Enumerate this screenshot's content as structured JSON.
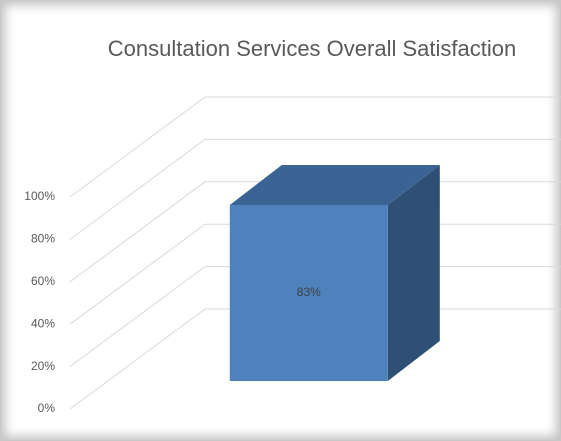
{
  "chart_data": {
    "type": "bar3d",
    "title": "Consultation Services Overall Satisfaction",
    "categories": [
      null
    ],
    "values": [
      83
    ],
    "value_labels": [
      "83%"
    ],
    "color": "#4f81bd",
    "ylim": [
      0,
      100
    ],
    "yticks": [
      {
        "value": 0,
        "label": "0%"
      },
      {
        "value": 20,
        "label": "20%"
      },
      {
        "value": 40,
        "label": "40%"
      },
      {
        "value": 60,
        "label": "60%"
      },
      {
        "value": 80,
        "label": "80%"
      },
      {
        "value": 100,
        "label": "100%"
      }
    ],
    "grid": true
  }
}
